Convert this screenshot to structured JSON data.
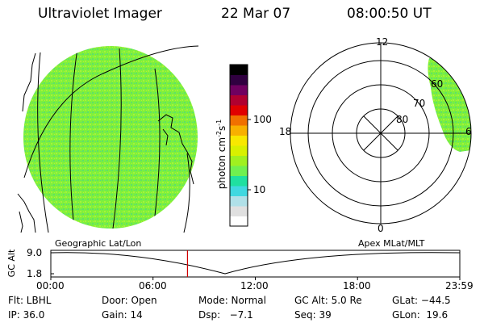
{
  "header": {
    "instrument": "Ultraviolet Imager",
    "date": "22 Mar 07",
    "time": "08:00:50 UT"
  },
  "colorbar": {
    "unit_label": "photon cm",
    "unit_sup1": "-2",
    "unit_s": "s",
    "unit_sup2": "-1",
    "ticks": [
      "100",
      "10"
    ],
    "tick_values": [
      100,
      10
    ],
    "range": [
      3,
      500
    ],
    "colors": [
      "#ffffff",
      "#e0e0e0",
      "#b0e0e8",
      "#40d8e0",
      "#20e0a0",
      "#70f050",
      "#a0f020",
      "#d8f000",
      "#f8e800",
      "#f8b000",
      "#f07000",
      "#e00000",
      "#b00030",
      "#700060",
      "#300040",
      "#000000"
    ]
  },
  "left_panel": {
    "label": "Geographic Lat/Lon",
    "fill_color": "#7ef03c"
  },
  "right_panel": {
    "label": "Apex MLat/MLT",
    "mlt_top": "12",
    "mlt_left": "18",
    "mlt_right": "6",
    "mlt_bottom": "0",
    "lat_labels": [
      "60",
      "70",
      "80"
    ],
    "fill_color": "#7ef03c"
  },
  "timeline": {
    "ylabel": "GC Alt",
    "y_top": "9.0",
    "y_bottom": "1.8",
    "x_ticks": [
      "00:00",
      "06:00",
      "12:00",
      "18:00",
      "23:59"
    ],
    "marker_time_hours": 8.014,
    "marker_color": "#d00000"
  },
  "footer": {
    "row1": {
      "flt": "Flt: LBHL",
      "door": "Door: Open",
      "mode": "Mode: Normal",
      "gcalt": "GC Alt: 5.0 Re",
      "glat": "GLat: −44.5"
    },
    "row2": {
      "ip": "IP: 36.0",
      "gain": "Gain: 14",
      "dsp": "Dsp:   −7.1",
      "seq": "Seq: 39",
      "glon": "GLon:  19.6"
    }
  }
}
